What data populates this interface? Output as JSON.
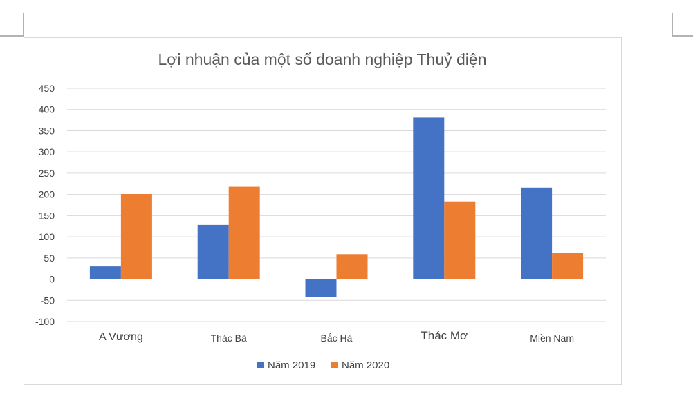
{
  "chart_data": {
    "type": "bar",
    "title": "Lợi nhuận của một số doanh nghiệp Thuỷ điện",
    "xlabel": "",
    "ylabel": "",
    "categories": [
      "A Vương",
      "Thác Bà",
      "Bắc Hà",
      "Thác Mơ",
      "Miền Nam"
    ],
    "series": [
      {
        "name": "Năm 2019",
        "color": "#4472c4",
        "values": [
          30,
          128,
          -42,
          381,
          216
        ]
      },
      {
        "name": "Năm 2020",
        "color": "#ed7d31",
        "values": [
          201,
          218,
          59,
          182,
          62
        ]
      }
    ],
    "ylim": [
      -100,
      450
    ],
    "yticks": [
      -100,
      -50,
      0,
      50,
      100,
      150,
      200,
      250,
      300,
      350,
      400,
      450
    ],
    "grid": true,
    "legend": "bottom-center"
  }
}
